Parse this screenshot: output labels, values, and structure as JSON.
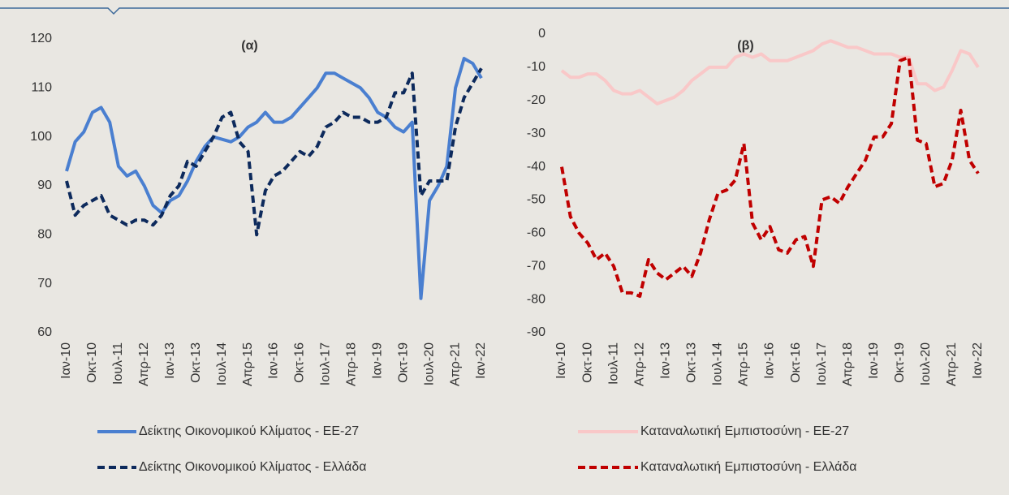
{
  "chart_data": [
    {
      "type": "line",
      "title": "(α)",
      "categories": [
        "Ιαν-10",
        null,
        null,
        "Οκτ-10",
        null,
        null,
        "Ιουλ-11",
        null,
        null,
        "Απρ-12",
        null,
        null,
        "Ιαν-13",
        null,
        null,
        "Οκτ-13",
        null,
        null,
        "Ιουλ-14",
        null,
        null,
        "Απρ-15",
        null,
        null,
        "Ιαν-16",
        null,
        null,
        "Οκτ-16",
        null,
        null,
        "Ιουλ-17",
        null,
        null,
        "Απρ-18",
        null,
        null,
        "Ιαν-19",
        null,
        null,
        "Οκτ-19",
        null,
        null,
        "Ιουλ-20",
        null,
        null,
        "Απρ-21",
        null,
        null,
        "Ιαν-22"
      ],
      "series": [
        {
          "name": "Δείκτης Οικονομικού Κλίματος -  ΕΕ-27",
          "color": "#4a7fd0",
          "dash": false,
          "values": [
            93,
            99,
            101,
            105,
            106,
            103,
            94,
            92,
            93,
            90,
            86,
            84.5,
            87,
            88,
            91,
            95,
            98,
            100,
            99.5,
            99,
            100,
            102,
            103,
            105,
            103,
            103,
            104,
            106,
            108,
            110,
            113,
            113,
            112,
            111,
            110,
            108,
            105,
            104,
            102,
            101,
            103,
            67,
            87,
            90,
            94,
            110,
            116,
            115,
            112
          ]
        },
        {
          "name": "Δείκτης Οικονομικού Κλίματος -  Ελλάδα",
          "color": "#0d2a5c",
          "dash": true,
          "values": [
            91,
            84,
            86,
            87,
            88,
            84,
            83,
            82,
            83,
            83,
            82,
            84,
            88,
            90,
            95,
            94,
            97,
            100,
            104,
            105,
            99,
            97,
            80,
            89,
            92,
            93,
            95,
            97,
            96,
            98,
            102,
            103,
            105,
            104,
            104,
            103,
            103,
            104,
            109,
            109,
            113,
            88,
            91,
            91,
            91,
            102,
            108,
            111,
            114
          ]
        }
      ],
      "ylim": [
        60,
        120
      ],
      "yticks": [
        60,
        70,
        80,
        90,
        100,
        110,
        120
      ],
      "grid": false
    },
    {
      "type": "line",
      "title": "(β)",
      "categories": [
        "Ιαν-10",
        null,
        null,
        "Οκτ-10",
        null,
        null,
        "Ιουλ-11",
        null,
        null,
        "Απρ-12",
        null,
        null,
        "Ιαν-13",
        null,
        null,
        "Οκτ-13",
        null,
        null,
        "Ιουλ-14",
        null,
        null,
        "Απρ-15",
        null,
        null,
        "Ιαν-16",
        null,
        null,
        "Οκτ-16",
        null,
        null,
        "Ιουλ-17",
        null,
        null,
        "Απρ-18",
        null,
        null,
        "Ιαν-19",
        null,
        null,
        "Οκτ-19",
        null,
        null,
        "Ιουλ-20",
        null,
        null,
        "Απρ-21",
        null,
        null,
        "Ιαν-22"
      ],
      "series": [
        {
          "name": "Καταναλωτική Εμπιστοσύνη -  ΕΕ-27",
          "color": "#f9c8c8",
          "dash": false,
          "values": [
            -11,
            -13,
            -13,
            -12,
            -12,
            -14,
            -17,
            -18,
            -18,
            -17,
            -19,
            -21,
            -20,
            -19,
            -17,
            -14,
            -12,
            -10,
            -10,
            -10,
            -7,
            -6,
            -7,
            -6,
            -8,
            -8,
            -8,
            -7,
            -6,
            -5,
            -3,
            -2,
            -3,
            -4,
            -4,
            -5,
            -6,
            -6,
            -6,
            -7,
            -7,
            -15,
            -15,
            -17,
            -16,
            -11,
            -5,
            -6,
            -10
          ]
        },
        {
          "name": "Καταναλωτική Εμπιστοσύνη -  Ελλάδα",
          "color": "#c00000",
          "dash": true,
          "values": [
            -40,
            -55,
            -60,
            -63,
            -68,
            -66,
            -70,
            -78,
            -78,
            -79,
            -68,
            -72,
            -74,
            -72,
            -70,
            -73,
            -66,
            -56,
            -48,
            -47,
            -44,
            -33,
            -57,
            -62,
            -58,
            -65,
            -66,
            -62,
            -61,
            -70,
            -50,
            -49,
            -51,
            -46,
            -42,
            -38,
            -31,
            -31,
            -27,
            -8,
            -7,
            -32,
            -33,
            -46,
            -45,
            -38,
            -23,
            -38,
            -42
          ]
        }
      ],
      "ylim": [
        -90,
        0
      ],
      "yticks": [
        -90,
        -80,
        -70,
        -60,
        -50,
        -40,
        -30,
        -20,
        -10,
        0
      ],
      "grid": false
    }
  ]
}
